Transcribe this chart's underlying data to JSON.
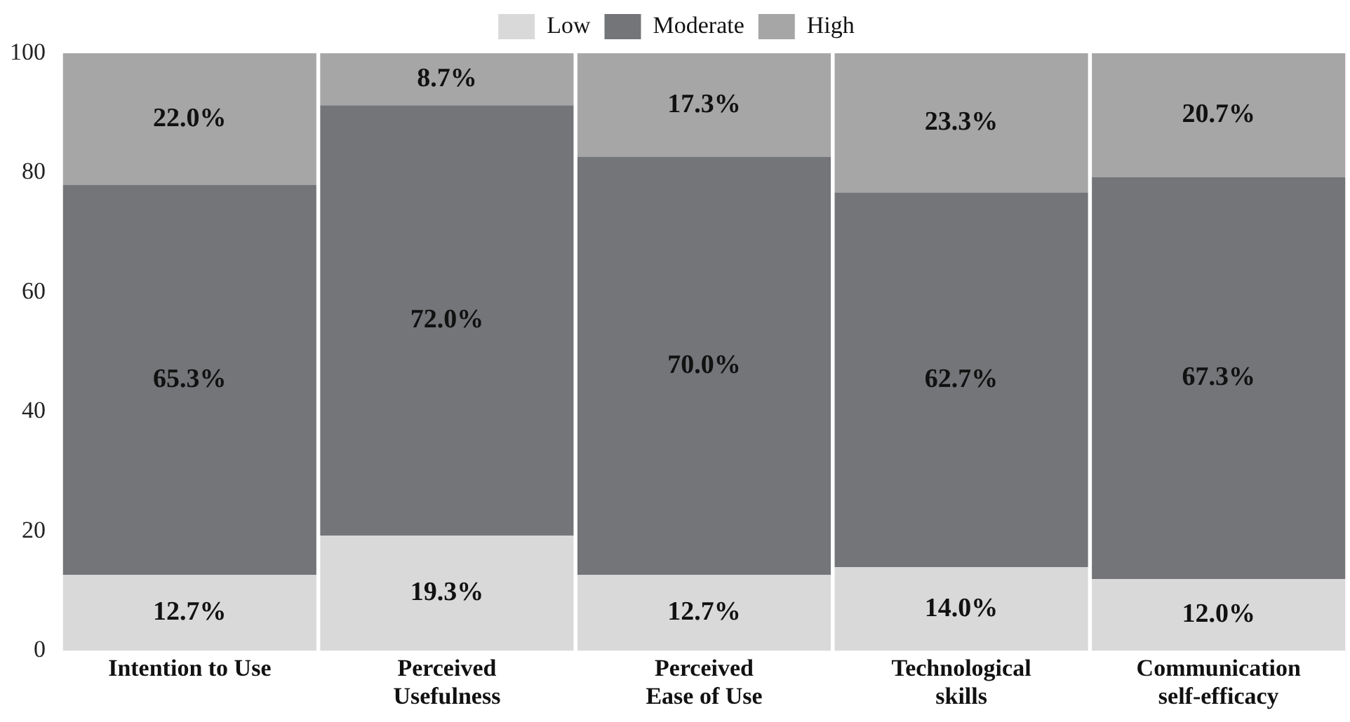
{
  "chart_data": {
    "type": "bar",
    "stacked": true,
    "categories": [
      "Intention to Use",
      "Perceived Usefulness",
      "Perceived Ease of Use",
      "Technological skills",
      "Communication self-efficacy"
    ],
    "series": [
      {
        "name": "Low",
        "color": "#d9d9d9",
        "values": [
          12.7,
          19.3,
          12.7,
          14.0,
          12.0
        ],
        "value_labels": [
          "12.7%",
          "19.3%",
          "12.7%",
          "14.0%",
          "12.0%"
        ]
      },
      {
        "name": "Moderate",
        "color": "#737578",
        "values": [
          65.3,
          72.0,
          70.0,
          62.7,
          67.3
        ],
        "value_labels": [
          "65.3%",
          "72.0%",
          "70.0%",
          "62.7%",
          "67.3%"
        ]
      },
      {
        "name": "High",
        "color": "#a6a6a6",
        "values": [
          22.0,
          8.7,
          17.3,
          23.3,
          20.7
        ],
        "value_labels": [
          "22.0%",
          "8.7%",
          "17.3%",
          "23.3%",
          "20.7%"
        ]
      }
    ],
    "ylim": [
      0,
      100
    ],
    "yticks": [
      0,
      20,
      40,
      60,
      80,
      100
    ],
    "grid": false,
    "legend": "top"
  }
}
